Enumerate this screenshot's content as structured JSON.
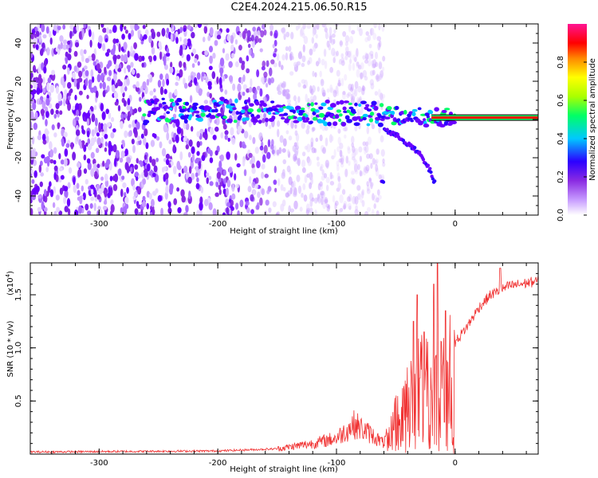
{
  "page": {
    "title": "C2E4.2024.215.06.50.R15"
  },
  "chart_data": [
    {
      "type": "heatmap",
      "xlabel": "Height of straight line (km)",
      "ylabel": "Frequency (Hz)",
      "xlim": [
        -358,
        70
      ],
      "ylim": [
        -50,
        50
      ],
      "x_ticks": [
        -300,
        -200,
        -100,
        0
      ],
      "y_ticks": [
        -40,
        -20,
        0,
        20,
        40
      ],
      "colorbar": {
        "label": "Normalized spectral amplitude",
        "range": [
          0,
          1
        ],
        "ticks": [
          "0.0",
          "0.2",
          "0.4",
          "0.6",
          "0.8"
        ],
        "colors": [
          "#ffffff",
          "#c79bff",
          "#8a2be2",
          "#2b00ff",
          "#00c8ff",
          "#00ff66",
          "#aaff00",
          "#ffff00",
          "#ff8800",
          "#ff0000",
          "#ff1493"
        ]
      },
      "main_track": [
        {
          "x": -260,
          "y": 5
        },
        {
          "x": -200,
          "y": 5
        },
        {
          "x": -120,
          "y": 4
        },
        {
          "x": -80,
          "y": 3
        },
        {
          "x": -40,
          "y": 2
        },
        {
          "x": -20,
          "y": 1
        },
        {
          "x": 0,
          "y": 1
        },
        {
          "x": 70,
          "y": 1
        }
      ],
      "branch_track": [
        {
          "x": -60,
          "y": -5
        },
        {
          "x": -45,
          "y": -10
        },
        {
          "x": -30,
          "y": -18
        },
        {
          "x": -20,
          "y": -28
        },
        {
          "x": -18,
          "y": -32
        }
      ],
      "noise_region_x": [
        -358,
        -140
      ]
    },
    {
      "type": "line",
      "xlabel": "Height of straight line (km)",
      "ylabel": "SNR (10 * v/v)",
      "y_multiplier": "(x10",
      "y_multiplier_exp": "4",
      "y_multiplier_close": ")",
      "xlim": [
        -358,
        70
      ],
      "ylim": [
        0,
        1.8
      ],
      "x_ticks": [
        -300,
        -200,
        -100,
        0
      ],
      "y_ticks": [
        0.5,
        1.0,
        1.5
      ],
      "color": "#f03030",
      "series": [
        {
          "envelope": [
            {
              "x": -358,
              "y": 0.02
            },
            {
              "x": -200,
              "y": 0.03
            },
            {
              "x": -150,
              "y": 0.05
            },
            {
              "x": -120,
              "y": 0.1
            },
            {
              "x": -100,
              "y": 0.15
            },
            {
              "x": -85,
              "y": 0.28
            },
            {
              "x": -70,
              "y": 0.18
            },
            {
              "x": -60,
              "y": 0.1
            },
            {
              "x": -50,
              "y": 0.4
            },
            {
              "x": -40,
              "y": 0.6
            },
            {
              "x": -30,
              "y": 0.85
            },
            {
              "x": -20,
              "y": 0.7
            },
            {
              "x": -12,
              "y": 0.8
            },
            {
              "x": -5,
              "y": 0.9
            },
            {
              "x": 0,
              "y": 1.05
            },
            {
              "x": 10,
              "y": 1.2
            },
            {
              "x": 20,
              "y": 1.38
            },
            {
              "x": 30,
              "y": 1.5
            },
            {
              "x": 45,
              "y": 1.58
            },
            {
              "x": 70,
              "y": 1.63
            }
          ],
          "spikes": [
            {
              "x": -35,
              "y": 1.25
            },
            {
              "x": -32,
              "y": 1.5
            },
            {
              "x": -26,
              "y": 1.15
            },
            {
              "x": -18,
              "y": 1.6
            },
            {
              "x": -15,
              "y": 1.8
            },
            {
              "x": -8,
              "y": 1.35
            },
            {
              "x": -9,
              "y": 0.3
            },
            {
              "x": 38,
              "y": 1.75
            }
          ]
        }
      ]
    }
  ]
}
